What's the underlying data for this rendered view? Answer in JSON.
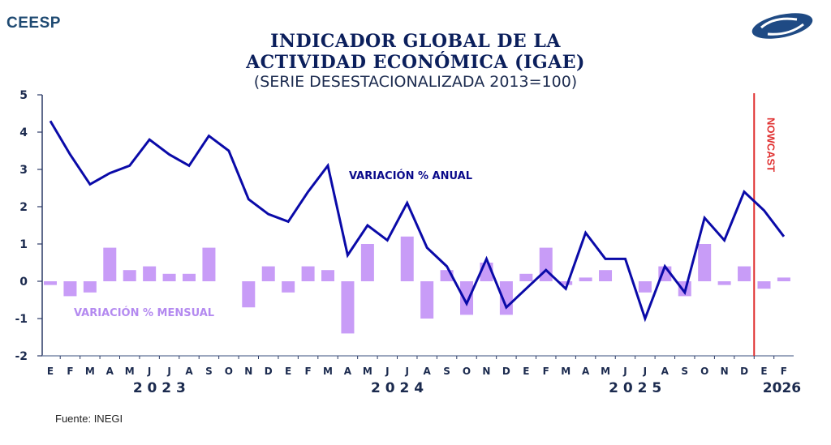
{
  "header": {
    "brand": "CEESP",
    "logo": "ceesp-logo",
    "title_line1": "INDICADOR GLOBAL DE LA",
    "title_line2": "ACTIVIDAD ECONÓMICA (IGAE)",
    "subtitle": "(SERIE DESESTACIONALIZADA 2013=100)"
  },
  "footer": {
    "source": "Fuente: INEGI"
  },
  "colors": {
    "line": "#0a0aa8",
    "bars": "#c89cf7",
    "nowcast": "#e03030",
    "axis": "#2b3a66",
    "ticklabel": "#1b2a4e",
    "bar_label": "#b48af0"
  },
  "chart_data": {
    "type": "bar+line",
    "title": "INDICADOR GLOBAL DE LA ACTIVIDAD ECONÓMICA (IGAE)",
    "subtitle": "(SERIE DESESTACIONALIZADA 2013=100)",
    "xlabel": "",
    "ylabel": "",
    "ylim": [
      -2,
      5
    ],
    "yticks": [
      "5",
      "4",
      "3",
      "2",
      "1",
      "0",
      "-1",
      "-2"
    ],
    "ytick_values": [
      5,
      4,
      3,
      2,
      1,
      0,
      -1,
      -2
    ],
    "grid": false,
    "categories": [
      "E",
      "F",
      "M",
      "A",
      "M",
      "J",
      "J",
      "A",
      "S",
      "O",
      "N",
      "D",
      "E",
      "F",
      "M",
      "A",
      "M",
      "J",
      "J",
      "A",
      "S",
      "O",
      "N",
      "D",
      "E",
      "F",
      "M",
      "A",
      "M",
      "J",
      "J",
      "A",
      "S",
      "O",
      "N",
      "D",
      "E",
      "F"
    ],
    "years": [
      {
        "label": "2 0 2 3",
        "start_index": 0,
        "end_index": 11
      },
      {
        "label": "2 0 2 4",
        "start_index": 12,
        "end_index": 23
      },
      {
        "label": "2 0 2 5",
        "start_index": 24,
        "end_index": 35
      },
      {
        "label": "2026",
        "start_index": 36,
        "end_index": 37
      }
    ],
    "series": [
      {
        "name": "VARIACIÓN % ANUAL",
        "type": "line",
        "values": [
          4.3,
          3.4,
          2.6,
          2.9,
          3.1,
          3.8,
          3.4,
          3.1,
          3.9,
          3.5,
          2.2,
          1.8,
          1.6,
          2.4,
          3.1,
          0.7,
          1.5,
          1.1,
          2.1,
          0.9,
          0.4,
          -0.6,
          0.6,
          -0.7,
          -0.2,
          0.3,
          -0.2,
          1.3,
          0.6,
          0.6,
          -1.0,
          0.4,
          -0.3,
          1.7,
          1.1,
          2.4,
          1.9,
          1.2
        ]
      },
      {
        "name": "VARIACIÓN % MENSUAL",
        "type": "bar",
        "values": [
          -0.1,
          -0.4,
          -0.3,
          0.9,
          0.3,
          0.4,
          0.2,
          0.2,
          0.9,
          0.0,
          -0.7,
          0.4,
          -0.3,
          0.4,
          0.3,
          -1.4,
          1.0,
          0.0,
          1.2,
          -1.0,
          0.3,
          -0.9,
          0.5,
          -0.9,
          0.2,
          0.9,
          -0.1,
          0.1,
          0.3,
          0.0,
          -0.3,
          0.4,
          -0.4,
          1.0,
          -0.1,
          0.4,
          -0.2,
          0.1
        ]
      }
    ],
    "annotations": [
      {
        "text": "VARIACIÓN % ANUAL",
        "series": "line"
      },
      {
        "text": "VARIACIÓN % MENSUAL",
        "series": "bar"
      },
      {
        "text": "NOWCAST",
        "marker": "vertical line between D 2025 and E 2026",
        "after_index": 35.5
      }
    ]
  }
}
